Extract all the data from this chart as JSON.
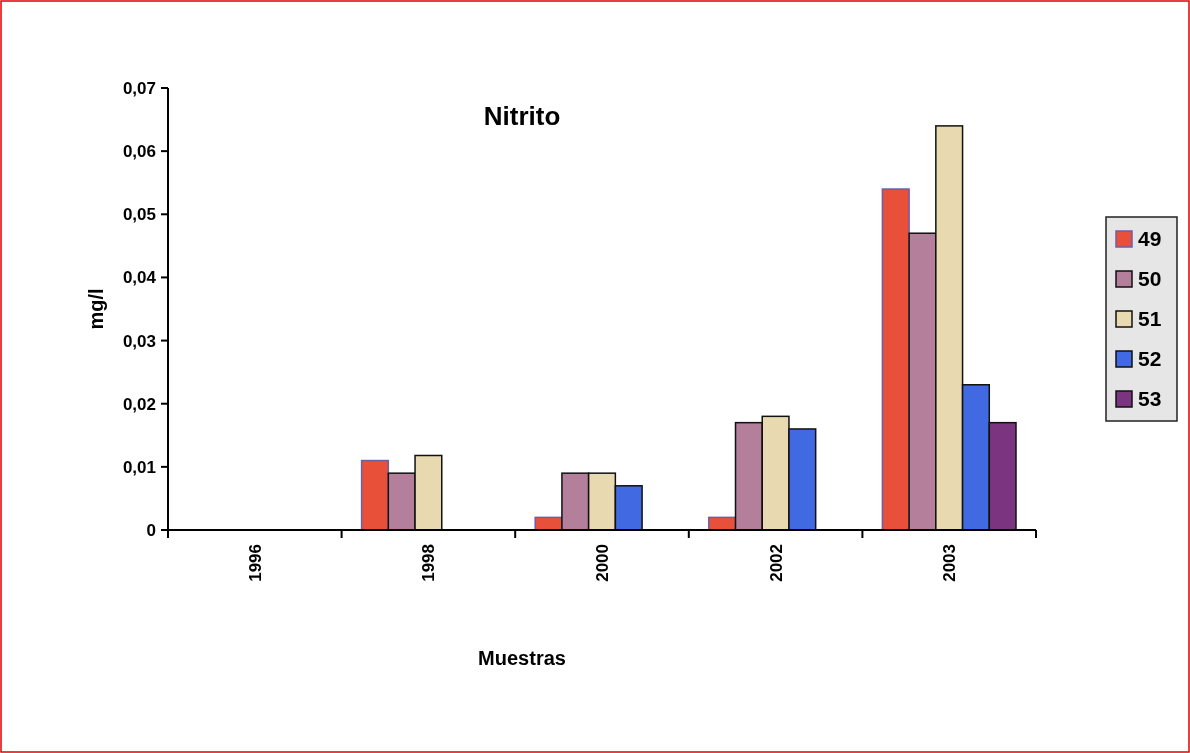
{
  "chart_data": {
    "type": "bar",
    "title": "Nitrito",
    "xlabel": "Muestras",
    "ylabel": "mg/l",
    "categories": [
      "1996",
      "1998",
      "2000",
      "2002",
      "2003"
    ],
    "series": [
      {
        "name": "49",
        "color": "#e8503a",
        "values": [
          null,
          0.011,
          0.002,
          0.002,
          0.054
        ]
      },
      {
        "name": "50",
        "color": "#b47f9a",
        "values": [
          null,
          0.009,
          0.009,
          0.017,
          0.047
        ]
      },
      {
        "name": "51",
        "color": "#e8d9b0",
        "values": [
          null,
          0.0118,
          0.009,
          0.018,
          0.064
        ]
      },
      {
        "name": "52",
        "color": "#4169e1",
        "values": [
          null,
          null,
          0.007,
          0.016,
          0.023
        ]
      },
      {
        "name": "53",
        "color": "#7b3480",
        "values": [
          null,
          null,
          null,
          null,
          0.017
        ]
      }
    ],
    "ylim": [
      0,
      0.07
    ],
    "yticks": [
      {
        "value": 0,
        "label": "0"
      },
      {
        "value": 0.01,
        "label": "0,01"
      },
      {
        "value": 0.02,
        "label": "0,02"
      },
      {
        "value": 0.03,
        "label": "0,03"
      },
      {
        "value": 0.04,
        "label": "0,04"
      },
      {
        "value": 0.05,
        "label": "0,05"
      },
      {
        "value": 0.06,
        "label": "0,06"
      },
      {
        "value": 0.07,
        "label": "0,07"
      }
    ],
    "grid": false,
    "legend": "right"
  }
}
